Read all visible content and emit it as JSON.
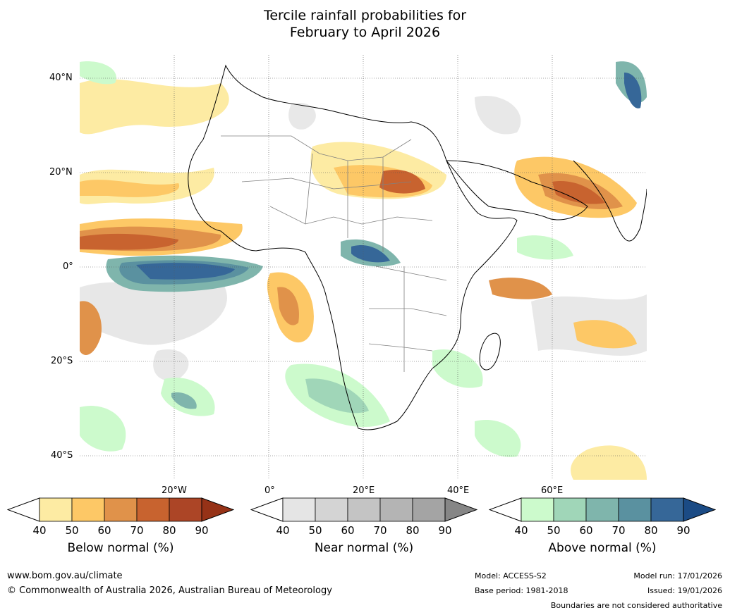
{
  "title_line1": "Tercile rainfall probabilities for",
  "title_line2": "February to April 2026",
  "map": {
    "lat_labels": [
      "40°N",
      "20°N",
      "0°",
      "20°S",
      "40°S"
    ],
    "lon_labels": [
      "20°W",
      "0°",
      "20°E",
      "40°E",
      "60°E"
    ]
  },
  "colorbars": [
    {
      "name": "below",
      "label": "Below normal (%)",
      "ticks": [
        "40",
        "50",
        "60",
        "70",
        "80",
        "90"
      ],
      "colors": [
        "#fdeba3",
        "#fdc866",
        "#e0924a",
        "#c8632f",
        "#ac4526"
      ],
      "end_color": "#963217"
    },
    {
      "name": "near",
      "label": "Near normal (%)",
      "ticks": [
        "40",
        "50",
        "60",
        "70",
        "80",
        "90"
      ],
      "colors": [
        "#e5e5e5",
        "#d4d4d4",
        "#c4c4c4",
        "#b4b4b4",
        "#a4a4a4"
      ],
      "end_color": "#868686"
    },
    {
      "name": "above",
      "label": "Above normal (%)",
      "ticks": [
        "40",
        "50",
        "60",
        "70",
        "80",
        "90"
      ],
      "colors": [
        "#ccfacc",
        "#a0d6b8",
        "#7fb5ac",
        "#5a91a0",
        "#366798"
      ],
      "end_color": "#1b4b85"
    }
  ],
  "footer": {
    "url": "www.bom.gov.au/climate",
    "copyright": "© Commonwealth of Australia 2026, Australian Bureau of Meteorology",
    "model": "Model: ACCESS-S2",
    "base_period": "Base period: 1981-2018",
    "model_run": "Model run: 17/01/2026",
    "issued": "Issued: 19/01/2026",
    "disclaimer": "Boundaries are not considered authoritative"
  }
}
